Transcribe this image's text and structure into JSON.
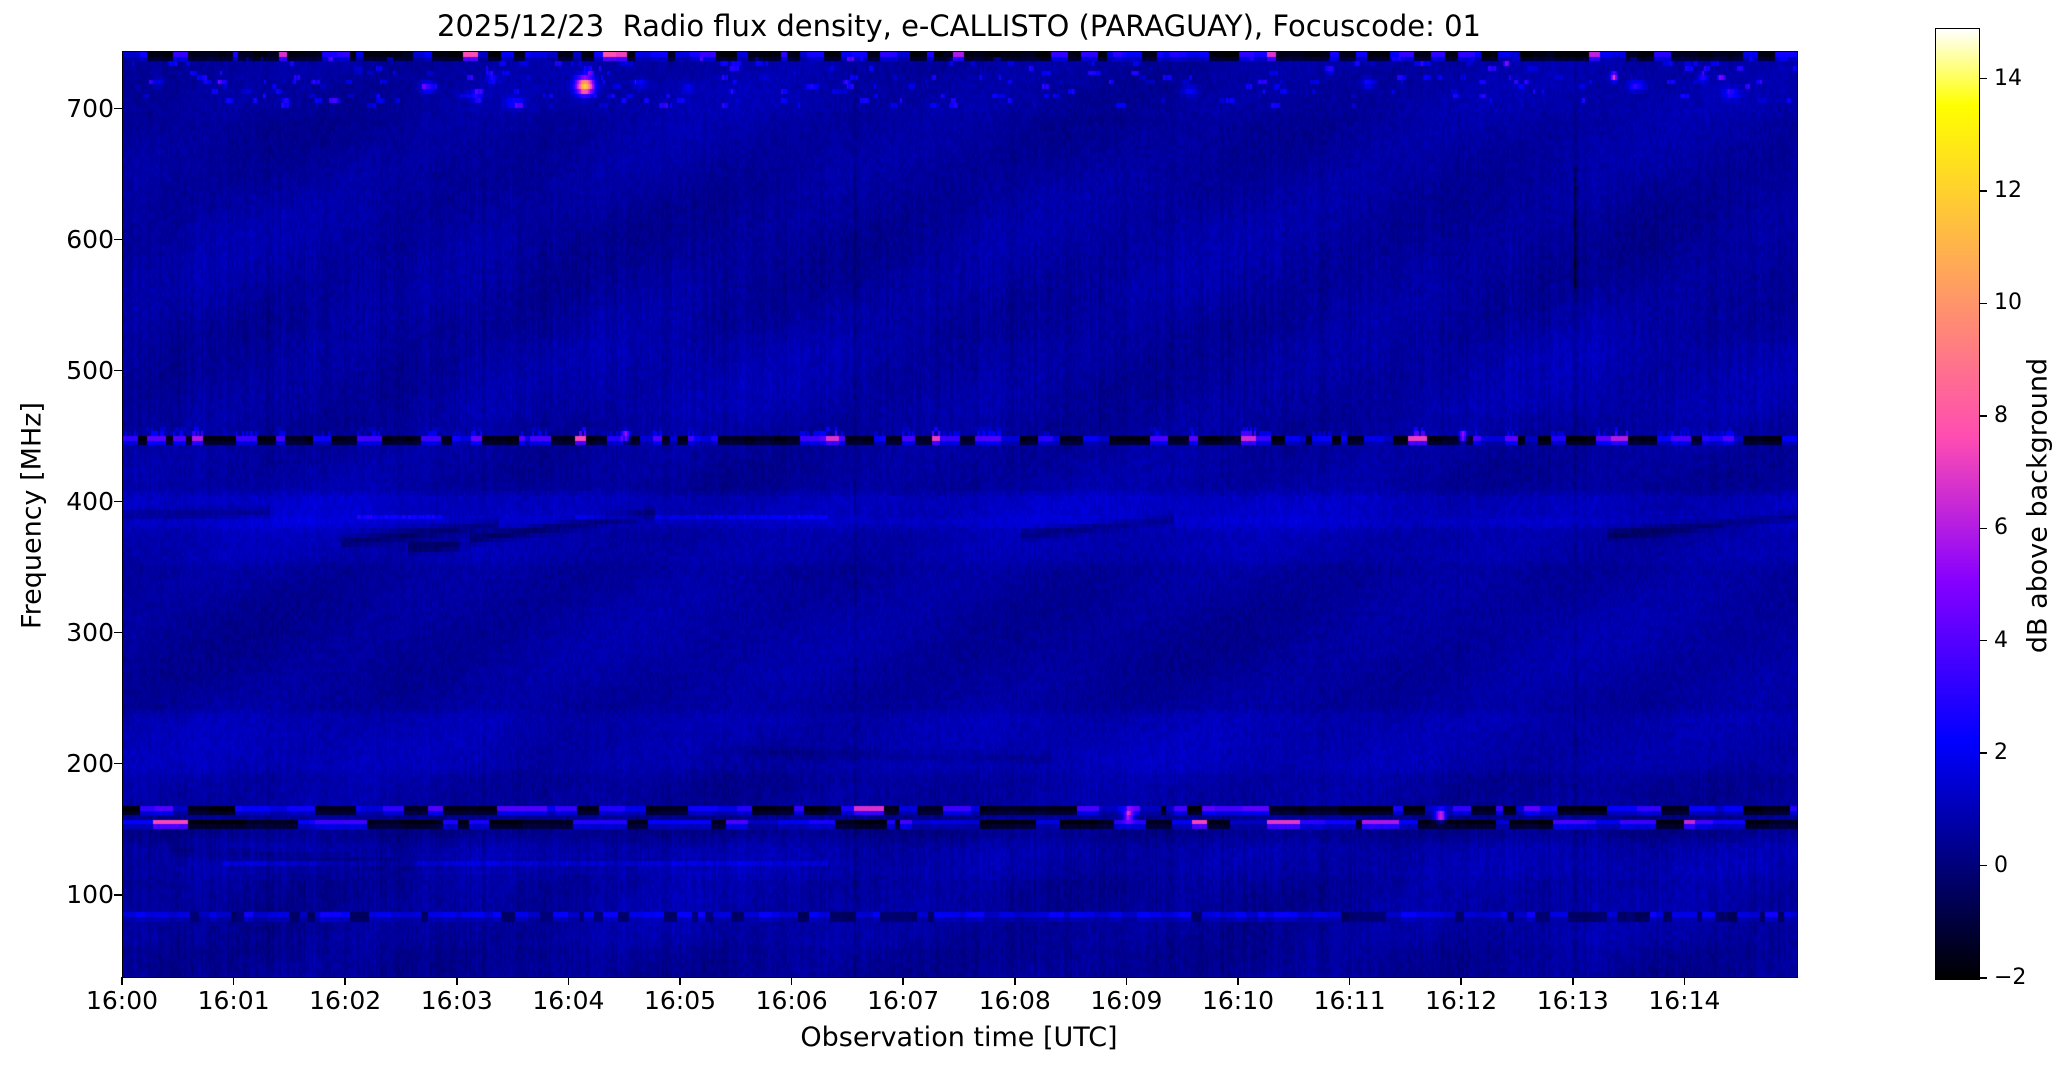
{
  "chart_data": {
    "type": "heatmap",
    "title": "2025/12/23  Radio flux density, e-CALLISTO (PARAGUAY), Focuscode: 01",
    "xlabel": "Observation time [UTC]",
    "ylabel": "Frequency [MHz]",
    "colorbar_label": "dB above background",
    "colormap": "gnuplot2",
    "x_ticks": [
      {
        "t": 0,
        "label": "16:00"
      },
      {
        "t": 1,
        "label": "16:01"
      },
      {
        "t": 2,
        "label": "16:02"
      },
      {
        "t": 3,
        "label": "16:03"
      },
      {
        "t": 4,
        "label": "16:04"
      },
      {
        "t": 5,
        "label": "16:05"
      },
      {
        "t": 6,
        "label": "16:06"
      },
      {
        "t": 7,
        "label": "16:07"
      },
      {
        "t": 8,
        "label": "16:08"
      },
      {
        "t": 9,
        "label": "16:09"
      },
      {
        "t": 10,
        "label": "16:10"
      },
      {
        "t": 11,
        "label": "16:11"
      },
      {
        "t": 12,
        "label": "16:12"
      },
      {
        "t": 13,
        "label": "16:13"
      },
      {
        "t": 14,
        "label": "16:14"
      }
    ],
    "x_range_minutes": [
      0,
      15
    ],
    "y_ticks": [
      100,
      200,
      300,
      400,
      500,
      600,
      700
    ],
    "freq_range": [
      38,
      744
    ],
    "value_range": [
      -2,
      14.9
    ],
    "colorbar_ticks": [
      {
        "v": 14,
        "label": "14"
      },
      {
        "v": 12,
        "label": "12"
      },
      {
        "v": 10,
        "label": "10"
      },
      {
        "v": 8,
        "label": "8"
      },
      {
        "v": 6,
        "label": "6"
      },
      {
        "v": 4,
        "label": "4"
      },
      {
        "v": 2,
        "label": "2"
      },
      {
        "v": 0,
        "label": "0"
      },
      {
        "v": -2,
        "label": "−2"
      }
    ],
    "background_db": 0.6,
    "features": {
      "freq_bands": [
        {
          "f0": 385,
          "f1": 403,
          "db": 0.55
        },
        {
          "f0": 358,
          "f1": 385,
          "db": 0.25
        },
        {
          "f0": 470,
          "f1": 520,
          "db": 0.1
        },
        {
          "f0": 198,
          "f1": 236,
          "db": 0.3
        },
        {
          "f0": 144,
          "f1": 158,
          "db": -0.3
        },
        {
          "f0": 118,
          "f1": 140,
          "db": 0.2
        },
        {
          "f0": 700,
          "f1": 740,
          "db": 0.1
        },
        {
          "f0": 38,
          "f1": 58,
          "db": -0.15
        }
      ],
      "rfi_bands": [
        {
          "freq": 452,
          "black_p": 0.42,
          "mag_p": 0.05,
          "bright": 3.2,
          "seg": 9,
          "black_db": -2,
          "spikes": true
        },
        {
          "freq": 167,
          "black_p": 0.45,
          "mag_p": 0.04,
          "bright": 3.0,
          "seg": 14,
          "black_db": -2,
          "spikes": false
        },
        {
          "freq": 159,
          "black_p": 0.5,
          "mag_p": 0.03,
          "bright": 2.6,
          "seg": 18,
          "black_db": -2,
          "spikes": false
        },
        {
          "freq": 743,
          "black_p": 0.5,
          "mag_p": 0.06,
          "bright": 2.2,
          "seg": 7,
          "black_db": -2,
          "spikes": false
        },
        {
          "freq": 86,
          "black_p": 0.25,
          "mag_p": 0.0,
          "bright": 1.4,
          "seg": 6,
          "black_db": -0.6,
          "spikes": false
        }
      ],
      "events": [
        {
          "t": 4.13,
          "f": 720,
          "db": 11.3,
          "st": 0.055,
          "sf": 1.3
        },
        {
          "t": 2.72,
          "f": 719,
          "db": 2.8,
          "st": 0.05,
          "sf": 0.8
        },
        {
          "t": 3.15,
          "f": 713,
          "db": 2.2,
          "st": 0.04,
          "sf": 0.8
        },
        {
          "t": 3.5,
          "f": 707,
          "db": 2.0,
          "st": 0.06,
          "sf": 0.8
        },
        {
          "t": 3.3,
          "f": 726,
          "db": 1.8,
          "st": 0.03,
          "sf": 0.7
        },
        {
          "t": 4.62,
          "f": 722,
          "db": 1.6,
          "st": 0.05,
          "sf": 0.7
        },
        {
          "t": 5.05,
          "f": 718,
          "db": 1.4,
          "st": 0.04,
          "sf": 0.7
        },
        {
          "t": 0.3,
          "f": 723,
          "db": 1.5,
          "st": 0.04,
          "sf": 0.7
        },
        {
          "t": 9.55,
          "f": 716,
          "db": 1.8,
          "st": 0.05,
          "sf": 0.8
        },
        {
          "t": 11.15,
          "f": 722,
          "db": 2.0,
          "st": 0.04,
          "sf": 0.8
        },
        {
          "t": 13.35,
          "f": 727,
          "db": 6.5,
          "st": 0.02,
          "sf": 0.7
        },
        {
          "t": 13.55,
          "f": 720,
          "db": 2.5,
          "st": 0.05,
          "sf": 0.8
        },
        {
          "t": 14.15,
          "f": 726,
          "db": 2.0,
          "st": 0.03,
          "sf": 0.7
        },
        {
          "t": 14.4,
          "f": 714,
          "db": 2.2,
          "st": 0.05,
          "sf": 0.8
        },
        {
          "t": 4.5,
          "f": 452,
          "db": 7.0,
          "st": 0.02,
          "sf": 0.8
        },
        {
          "t": 12.0,
          "f": 452,
          "db": 6.8,
          "st": 0.02,
          "sf": 0.8
        },
        {
          "t": 11.8,
          "f": 163,
          "db": 7.0,
          "st": 0.03,
          "sf": 0.9
        },
        {
          "t": 9.0,
          "f": 163,
          "db": 6.0,
          "st": 0.03,
          "sf": 0.9
        }
      ],
      "top_speckles": {
        "count": 260,
        "f0": 703,
        "f1": 740,
        "db_min": 0.7,
        "db_max": 2.8
      },
      "streaks": [
        {
          "t0": 0.0,
          "f0": 392,
          "t1": 1.3,
          "f1": 395,
          "db": -0.75
        },
        {
          "t0": 1.95,
          "f0": 371,
          "t1": 3.35,
          "f1": 386,
          "db": -1.0
        },
        {
          "t0": 2.55,
          "f0": 368,
          "t1": 3.0,
          "f1": 369,
          "db": -1.2
        },
        {
          "t0": 3.1,
          "f0": 374,
          "t1": 4.75,
          "f1": 393,
          "db": -1.25
        },
        {
          "t0": 8.05,
          "f0": 377,
          "t1": 9.4,
          "f1": 389,
          "db": -0.95
        },
        {
          "t0": 13.3,
          "f0": 377,
          "t1": 15.0,
          "f1": 391,
          "db": -1.05
        },
        {
          "t0": 0.45,
          "f0": 137,
          "t1": 2.6,
          "f1": 125,
          "db": -0.45
        },
        {
          "t0": 5.5,
          "f0": 212,
          "t1": 8.3,
          "f1": 206,
          "db": -0.4
        }
      ],
      "hlines": [
        {
          "f": 126,
          "t0": 0.9,
          "t1": 6.3,
          "db": 0.65
        },
        {
          "f": 391,
          "t0": 4.05,
          "t1": 6.3,
          "db": 0.8
        },
        {
          "f": 390,
          "t0": 2.1,
          "t1": 2.85,
          "db": 1.1
        }
      ],
      "vlines": [
        {
          "t": 13.0,
          "db": -0.9,
          "f0": 565,
          "f1": 655
        },
        {
          "t": 6.55,
          "db": -0.45,
          "f0": null,
          "f1": null
        },
        {
          "t": 11.95,
          "db": -0.4,
          "f0": null,
          "f1": null
        }
      ]
    }
  }
}
